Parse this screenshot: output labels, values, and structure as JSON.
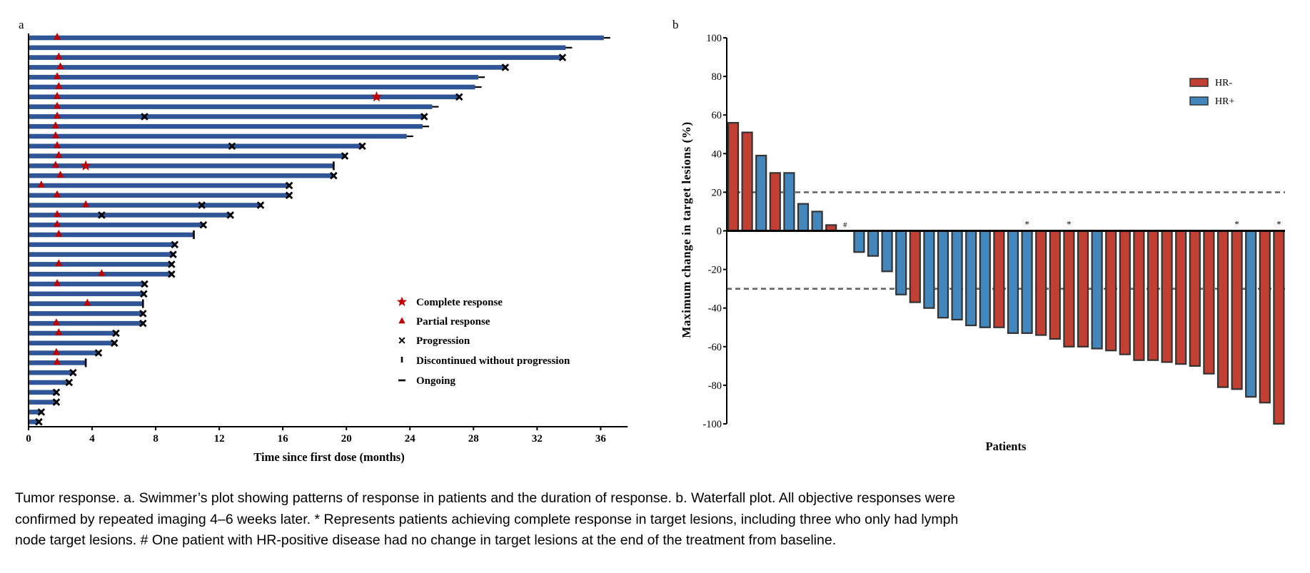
{
  "chart_data": [
    {
      "panel_label": "a",
      "type": "swimmer",
      "xlabel": "Time since first dose (months)",
      "ylabel": "",
      "xlim": [
        0,
        37.7
      ],
      "xticks": [
        0,
        4,
        8,
        12,
        16,
        20,
        24,
        28,
        32,
        36
      ],
      "bar_color": "#2F5597",
      "marker_color": "#C00000",
      "legend": {
        "placement": "bottom-right",
        "items": [
          {
            "marker": "star",
            "label": "Complete response"
          },
          {
            "marker": "triangle",
            "label": "Partial response"
          },
          {
            "marker": "x",
            "label": "Progression"
          },
          {
            "marker": "vertical-tick",
            "label": "Discontinued without progression"
          },
          {
            "marker": "horizontal-dash",
            "label": "Ongoing"
          }
        ]
      },
      "rows": [
        {
          "duration": 36.2,
          "end": "ongoing",
          "pr": 1.8
        },
        {
          "duration": 33.8,
          "end": "ongoing"
        },
        {
          "duration": 33.6,
          "end": "progression",
          "pr": 1.9
        },
        {
          "duration": 30.0,
          "end": "progression",
          "pr": 2.0
        },
        {
          "duration": 28.3,
          "end": "ongoing",
          "pr": 1.8
        },
        {
          "duration": 28.1,
          "end": "ongoing",
          "pr": 1.9
        },
        {
          "duration": 27.1,
          "end": "progression",
          "pr": 1.8,
          "cr": 21.9
        },
        {
          "duration": 25.4,
          "end": "ongoing",
          "pr": 1.8
        },
        {
          "duration": 24.9,
          "end": "progression",
          "pr": 1.8,
          "prog": [
            7.3
          ]
        },
        {
          "duration": 24.8,
          "end": "ongoing",
          "pr": 1.7
        },
        {
          "duration": 23.8,
          "end": "ongoing",
          "pr": 1.7
        },
        {
          "duration": 21.0,
          "end": "progression",
          "pr": 1.8,
          "prog": [
            12.8
          ]
        },
        {
          "duration": 19.9,
          "end": "progression",
          "pr": 1.9
        },
        {
          "duration": 19.2,
          "end": "discontinued",
          "pr": 1.7,
          "cr": 3.6
        },
        {
          "duration": 19.2,
          "end": "progression",
          "pr": 2.0
        },
        {
          "duration": 16.4,
          "end": "progression",
          "pr": 0.8
        },
        {
          "duration": 16.4,
          "end": "progression",
          "pr": 1.8
        },
        {
          "duration": 14.6,
          "end": "progression",
          "pr": 3.6,
          "prog": [
            10.9
          ]
        },
        {
          "duration": 12.7,
          "end": "progression",
          "pr": 1.8,
          "prog": [
            4.6
          ]
        },
        {
          "duration": 11.0,
          "end": "progression",
          "pr": 1.8
        },
        {
          "duration": 10.4,
          "end": "discontinued",
          "pr": 1.9
        },
        {
          "duration": 9.2,
          "end": "progression"
        },
        {
          "duration": 9.1,
          "end": "progression"
        },
        {
          "duration": 9.0,
          "end": "progression",
          "pr": 1.9
        },
        {
          "duration": 9.0,
          "end": "progression",
          "pr": 4.6
        },
        {
          "duration": 7.3,
          "end": "progression",
          "pr": 1.8
        },
        {
          "duration": 7.25,
          "end": "progression"
        },
        {
          "duration": 7.2,
          "end": "discontinued",
          "pr": 3.7
        },
        {
          "duration": 7.2,
          "end": "progression"
        },
        {
          "duration": 7.2,
          "end": "progression",
          "pr": 1.75
        },
        {
          "duration": 5.5,
          "end": "progression",
          "pr": 1.9
        },
        {
          "duration": 5.4,
          "end": "progression"
        },
        {
          "duration": 4.4,
          "end": "progression",
          "pr": 1.75
        },
        {
          "duration": 3.6,
          "end": "discontinued",
          "pr": 1.8
        },
        {
          "duration": 2.8,
          "end": "progression"
        },
        {
          "duration": 2.55,
          "end": "progression"
        },
        {
          "duration": 1.75,
          "end": "progression"
        },
        {
          "duration": 1.75,
          "end": "progression"
        },
        {
          "duration": 0.8,
          "end": "progression"
        },
        {
          "duration": 0.65,
          "end": "progression"
        }
      ]
    },
    {
      "panel_label": "b",
      "type": "bar",
      "subtype": "waterfall",
      "xlabel": "Patients",
      "ylabel": "Maximum change in target lesions (%)",
      "ylim": [
        -100,
        100
      ],
      "yticks": [
        100,
        80,
        60,
        40,
        20,
        0,
        -20,
        -40,
        -60,
        -80,
        -100
      ],
      "reference_lines": [
        20,
        -30
      ],
      "colors": {
        "HR-": "#C23F33",
        "HR+": "#4286BC"
      },
      "legend": {
        "placement": "top-right",
        "items": [
          "HR-",
          "HR+"
        ]
      },
      "values": [
        56,
        51,
        39,
        30,
        30,
        14,
        10,
        3,
        0,
        -11,
        -13,
        -21,
        -33,
        -37,
        -40,
        -45,
        -46,
        -49,
        -50,
        -50,
        -53,
        -53,
        -54,
        -56,
        -60,
        -60,
        -61,
        -62,
        -64,
        -67,
        -67,
        -68,
        -69,
        -70,
        -74,
        -81,
        -82,
        -86,
        -89,
        -100
      ],
      "groups": [
        "HR-",
        "HR-",
        "HR+",
        "HR-",
        "HR+",
        "HR+",
        "HR+",
        "HR-",
        "HR+",
        "HR+",
        "HR+",
        "HR+",
        "HR+",
        "HR-",
        "HR+",
        "HR+",
        "HR+",
        "HR+",
        "HR+",
        "HR-",
        "HR+",
        "HR+",
        "HR-",
        "HR-",
        "HR-",
        "HR-",
        "HR+",
        "HR-",
        "HR-",
        "HR-",
        "HR-",
        "HR-",
        "HR-",
        "HR-",
        "HR-",
        "HR-",
        "HR-",
        "HR+",
        "HR-",
        "HR-"
      ],
      "annotations": [
        "",
        "",
        "",
        "",
        "",
        "",
        "",
        "",
        "#",
        "",
        "",
        "",
        "",
        "",
        "",
        "",
        "",
        "",
        "",
        "",
        "",
        "*",
        "",
        "",
        "*",
        "",
        "",
        "",
        "",
        "",
        "",
        "",
        "",
        "",
        "",
        "",
        "*",
        "",
        "",
        "*"
      ]
    }
  ],
  "caption": [
    "Tumor response. a. Swimmer’s plot showing patterns of response in patients and the duration of response. b. Waterfall plot. All objective responses were",
    "confirmed by repeated imaging 4–6 weeks later. * Represents patients achieving complete response in target lesions, including three who only had lymph",
    "node target lesions. # One patient with HR-positive disease had no change in target lesions at the end of the treatment from baseline."
  ]
}
